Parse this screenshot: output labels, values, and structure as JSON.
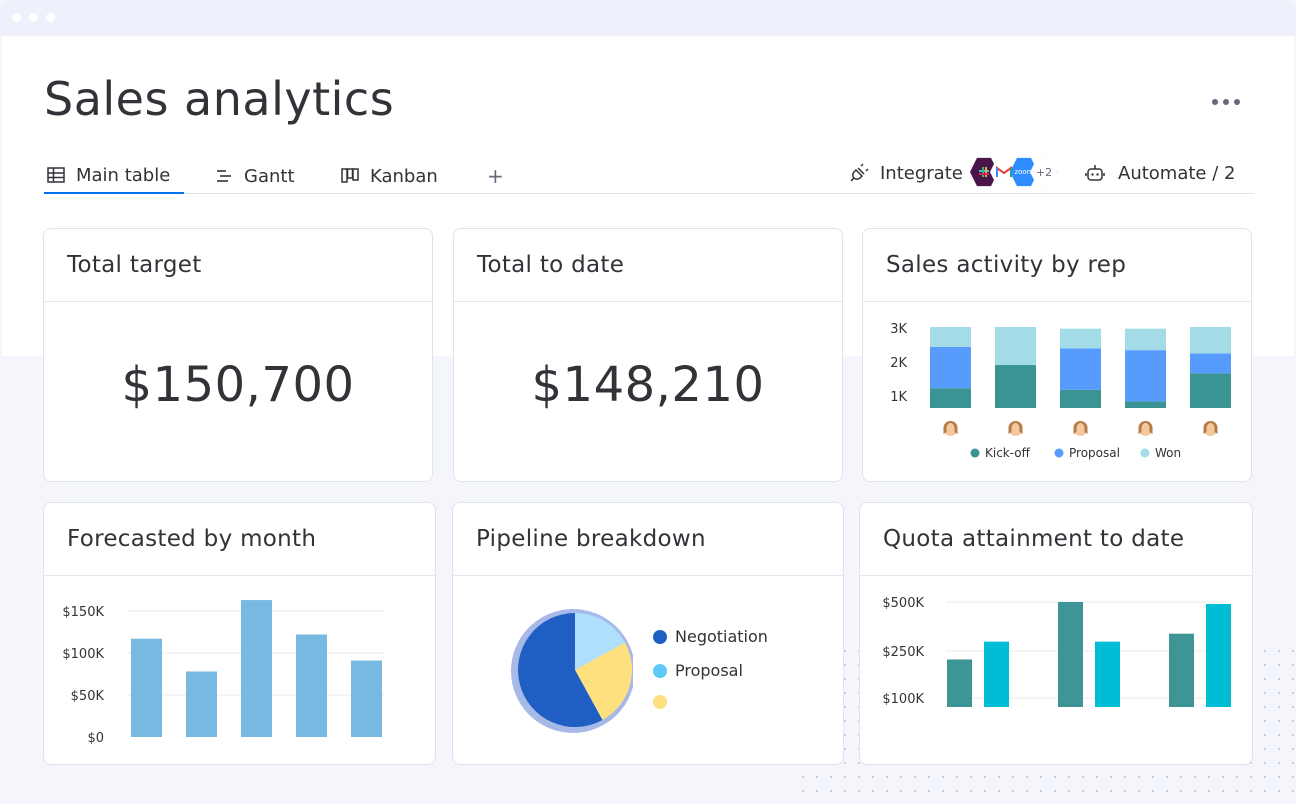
{
  "page": {
    "title": "Sales analytics"
  },
  "tabs": [
    {
      "label": "Main table",
      "icon": "table-icon",
      "active": true
    },
    {
      "label": "Gantt",
      "icon": "gantt-icon"
    },
    {
      "label": "Kanban",
      "icon": "kanban-icon"
    }
  ],
  "add_view_label": "+",
  "toolbar": {
    "integrate_label": "Integrate",
    "integrations": [
      "slack-icon",
      "gmail-icon",
      "zoom-icon"
    ],
    "zoom_label": "zoom",
    "more_integrations": "+2",
    "automate_label": "Automate / 2"
  },
  "cards": {
    "total_target": {
      "title": "Total target",
      "value": "$150,700"
    },
    "total_to_date": {
      "title": "Total to date",
      "value": "$148,210"
    },
    "sales_activity": {
      "title": "Sales activity by rep"
    },
    "forecast": {
      "title": "Forecasted by month"
    },
    "pipeline": {
      "title": "Pipeline breakdown"
    },
    "quota": {
      "title": "Quota attainment to date"
    }
  },
  "colors": {
    "accent": "#0073ea",
    "kickoff": "#3b9494",
    "proposal": "#579bfc",
    "won": "#a3dbe6",
    "forecast_bar": "#78b9e2",
    "quota_a": "#3d9596",
    "quota_b": "#00bcd4",
    "negotiation": "#1f5ec2",
    "proposal_slice": "#aee0fd",
    "yellow_slice": "#ffe07f"
  },
  "chart_data": [
    {
      "type": "bar",
      "title": "Sales activity by rep",
      "stacked": true,
      "categories": [
        "",
        "",
        "",
        "",
        ""
      ],
      "series": [
        {
          "name": "Kick-off",
          "values": [
            600,
            1300,
            550,
            200,
            1050
          ]
        },
        {
          "name": "Proposal",
          "values": [
            1250,
            0,
            1250,
            1550,
            600
          ]
        },
        {
          "name": "Won",
          "values": [
            600,
            1150,
            600,
            650,
            800
          ]
        }
      ],
      "yticks": [
        "1K",
        "2K",
        "3K"
      ],
      "ylim": [
        0,
        2450
      ]
    },
    {
      "type": "bar",
      "title": "Forecasted by month",
      "categories": [
        "",
        "",
        "",
        "",
        ""
      ],
      "values": [
        117000,
        78000,
        163000,
        122000,
        91000
      ],
      "yticks": [
        "$0",
        "$50K",
        "$100K",
        "$150K"
      ],
      "ylim": [
        0,
        150000
      ]
    },
    {
      "type": "pie",
      "title": "Pipeline breakdown",
      "series": [
        {
          "name": "Negotiation",
          "value": 58
        },
        {
          "name": "Proposal",
          "value": 17
        },
        {
          "name": "",
          "value": 25
        }
      ]
    },
    {
      "type": "bar",
      "title": "Quota attainment to date",
      "categories": [
        "",
        "",
        ""
      ],
      "series": [
        {
          "name": "",
          "values": [
            240000,
            530000,
            370000
          ]
        },
        {
          "name": "",
          "values": [
            330000,
            330000,
            520000
          ]
        }
      ],
      "yticks": [
        "$100K",
        "$250K",
        "$500K"
      ]
    }
  ]
}
